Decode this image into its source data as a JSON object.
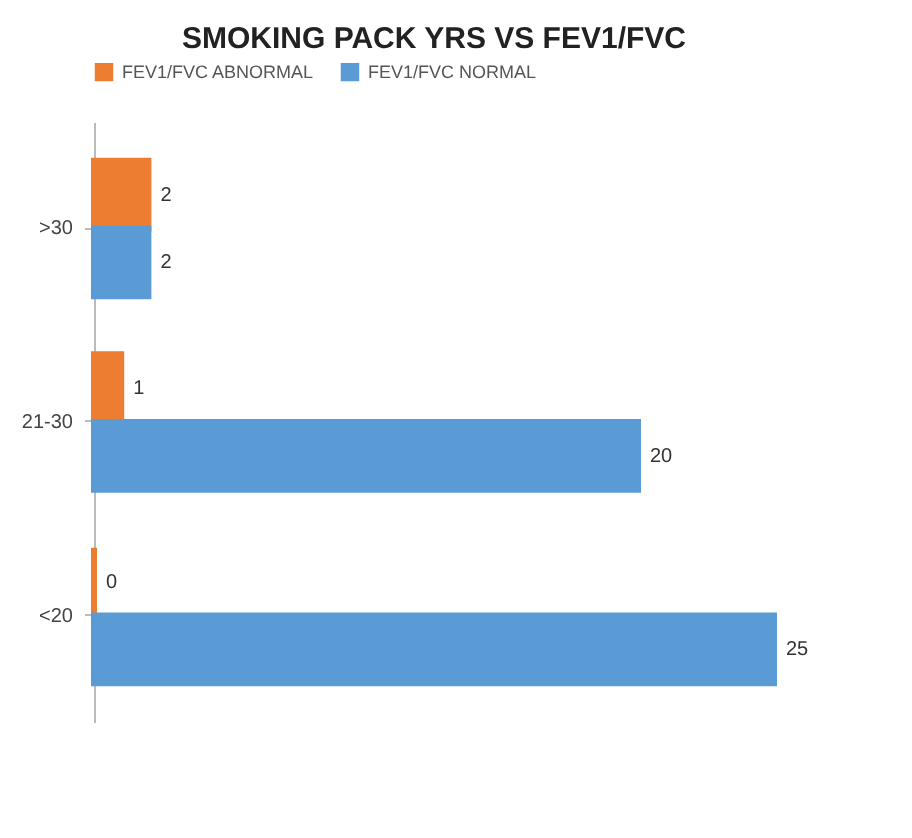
{
  "chart_data": {
    "type": "bar",
    "orientation": "horizontal",
    "title": "SMOKING PACK YRS VS FEV1/FVC",
    "categories": [
      ">30",
      "21-30",
      "<20"
    ],
    "series": [
      {
        "name": "FEV1/FVC ABNORMAL",
        "color": "#ed7d31",
        "values": [
          2,
          1,
          0
        ]
      },
      {
        "name": "FEV1/FVC NORMAL",
        "color": "#5b9bd5",
        "values": [
          2,
          20,
          25
        ]
      }
    ],
    "data_labels": true,
    "legend": "top",
    "grid": false
  }
}
